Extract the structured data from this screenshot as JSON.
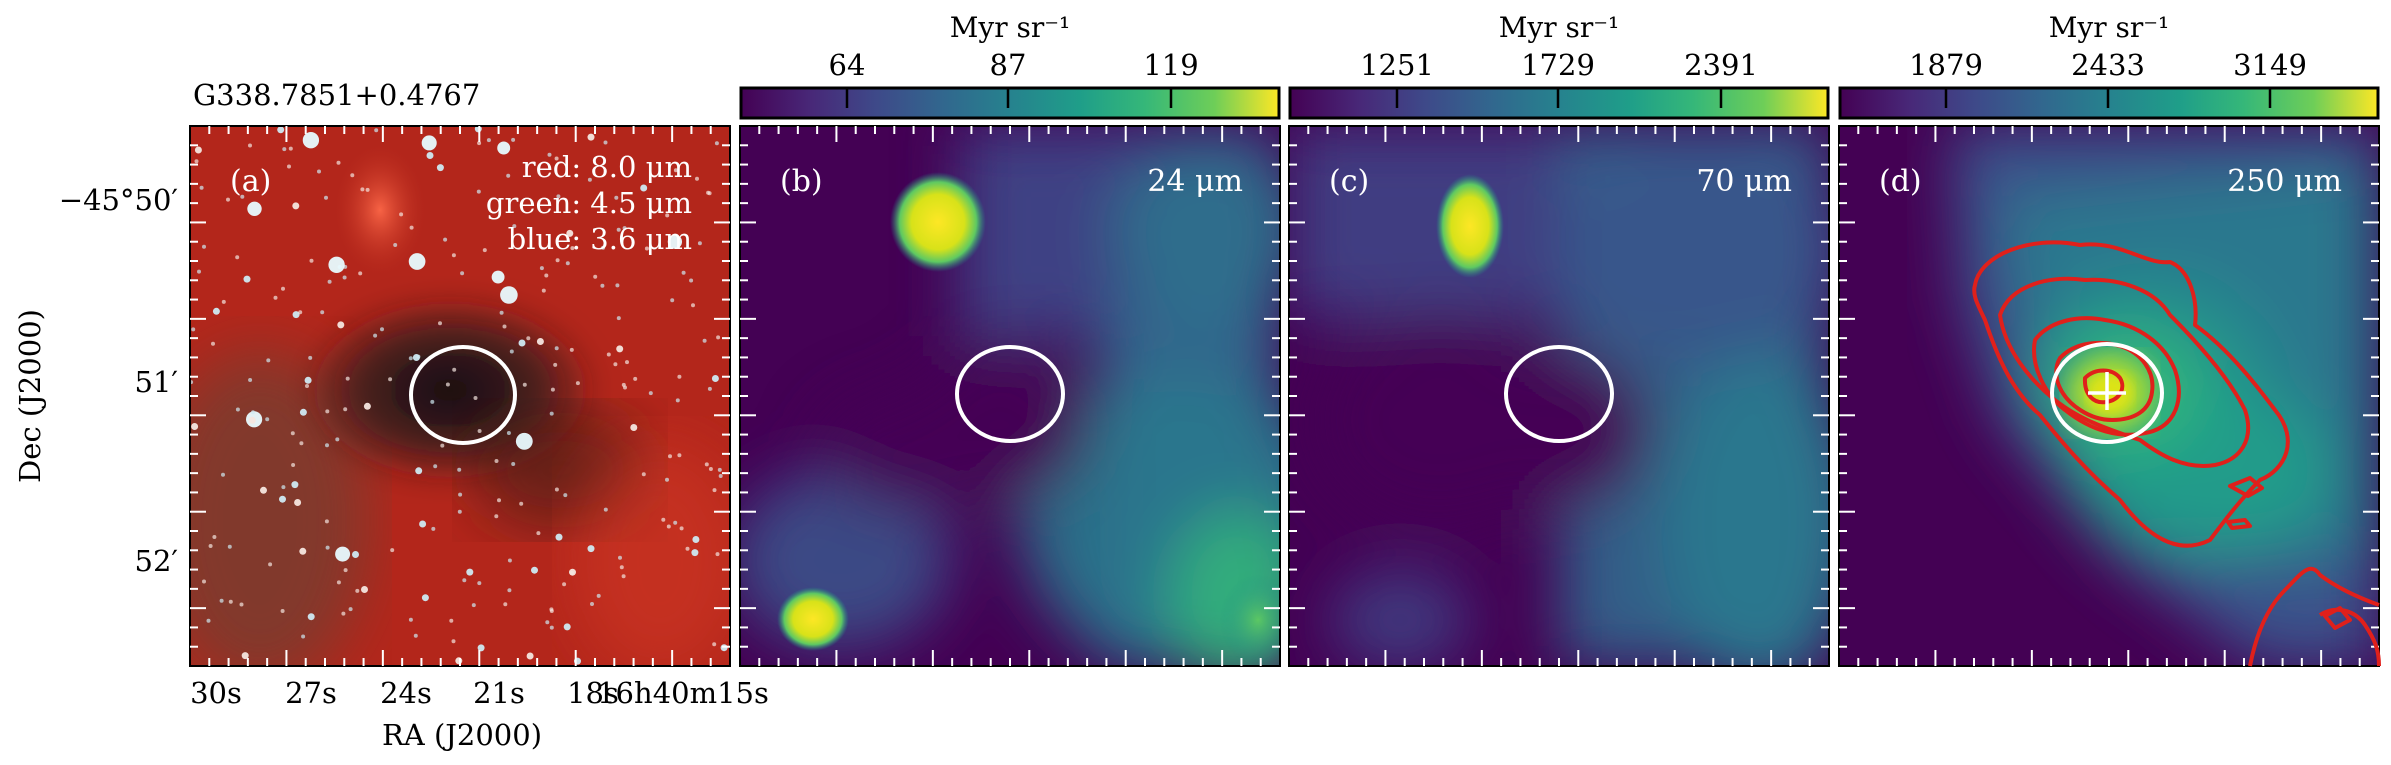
{
  "figure": {
    "source_name": "G338.7851+0.4767",
    "ylabel": "Dec (J2000)",
    "xlabel": "RA (J2000)",
    "ra_ticks": [
      "30s",
      "27s",
      "24s",
      "21s",
      "18s",
      "16h40m15s"
    ],
    "dec_ticks": [
      "−45°50′",
      "51′",
      "52′"
    ],
    "panels": [
      {
        "id": "a",
        "label": "(a)",
        "legend": [
          "red: 8.0 μm",
          "green: 4.5 μm",
          "blue: 3.6 μm"
        ]
      },
      {
        "id": "b",
        "label": "(b)",
        "band": "24 μm",
        "colorbar": {
          "unit": "Myr sr⁻¹",
          "ticks": [
            "64",
            "87",
            "119"
          ]
        }
      },
      {
        "id": "c",
        "label": "(c)",
        "band": "70 μm",
        "colorbar": {
          "unit": "Myr sr⁻¹",
          "ticks": [
            "1251",
            "1729",
            "2391"
          ]
        }
      },
      {
        "id": "d",
        "label": "(d)",
        "band": "250 μm",
        "colorbar": {
          "unit": "Myr sr⁻¹",
          "ticks": [
            "1879",
            "2433",
            "3149"
          ]
        }
      }
    ],
    "colors": {
      "viridis_low": "#440154",
      "viridis_mid": "#21918c",
      "viridis_high": "#fde725",
      "ellipse": "#ffffff",
      "contour": "#e0201b",
      "rgb_background": "#b8241a"
    }
  }
}
